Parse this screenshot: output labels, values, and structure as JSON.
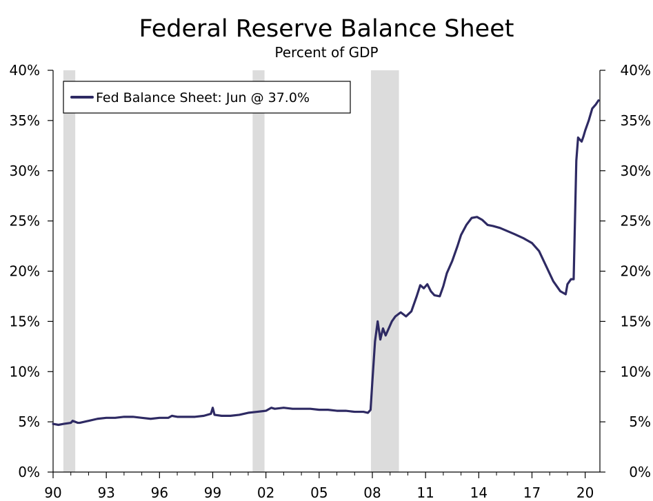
{
  "chart_data": {
    "type": "line",
    "title": "Federal Reserve Balance Sheet",
    "subtitle": "Percent of GDP",
    "xlabel": "",
    "ylabel": "",
    "xlim": [
      1990.0,
      2020.83
    ],
    "ylim": [
      0,
      40
    ],
    "y_ticks": [
      0,
      5,
      10,
      15,
      20,
      25,
      30,
      35,
      40
    ],
    "y_tick_labels": [
      "0%",
      "5%",
      "10%",
      "15%",
      "20%",
      "25%",
      "30%",
      "35%",
      "40%"
    ],
    "x_ticks": [
      1990,
      1993,
      1996,
      1999,
      2002,
      2005,
      2008,
      2011,
      2014,
      2017,
      2020
    ],
    "x_tick_labels": [
      "90",
      "93",
      "96",
      "99",
      "02",
      "05",
      "08",
      "11",
      "14",
      "17",
      "20"
    ],
    "grid": false,
    "legend": {
      "position": "top-left",
      "entries": [
        "Fed Balance Sheet: Jun @ 37.0%"
      ]
    },
    "colors": {
      "line": "#2e2a63",
      "recession": "#dcdcdc",
      "axis": "#000000"
    },
    "recessions": [
      [
        1990.58,
        1991.25
      ],
      [
        2001.25,
        2001.92
      ],
      [
        2007.92,
        2009.5
      ]
    ],
    "series": [
      {
        "name": "Fed Balance Sheet: Jun @ 37.0%",
        "x": [
          1990.0,
          1990.3,
          1990.6,
          1991.0,
          1991.1,
          1991.4,
          1991.5,
          1992.0,
          1992.5,
          1993.0,
          1993.5,
          1994.0,
          1994.5,
          1995.0,
          1995.5,
          1996.0,
          1996.5,
          1996.7,
          1997.0,
          1997.5,
          1998.0,
          1998.5,
          1998.9,
          1999.0,
          1999.1,
          1999.5,
          2000.0,
          2000.5,
          2001.0,
          2001.5,
          2002.0,
          2002.3,
          2002.5,
          2003.0,
          2003.5,
          2004.0,
          2004.5,
          2005.0,
          2005.5,
          2006.0,
          2006.5,
          2007.0,
          2007.5,
          2007.75,
          2007.9,
          2008.0,
          2008.15,
          2008.3,
          2008.45,
          2008.6,
          2008.75,
          2008.9,
          2009.1,
          2009.3,
          2009.6,
          2009.9,
          2010.2,
          2010.5,
          2010.7,
          2010.9,
          2011.1,
          2011.3,
          2011.5,
          2011.8,
          2012.0,
          2012.2,
          2012.5,
          2012.8,
          2013.0,
          2013.3,
          2013.6,
          2013.9,
          2014.2,
          2014.5,
          2014.8,
          2015.2,
          2015.6,
          2016.0,
          2016.5,
          2017.0,
          2017.4,
          2017.8,
          2018.2,
          2018.6,
          2018.9,
          2019.0,
          2019.2,
          2019.35,
          2019.5,
          2019.6,
          2019.8,
          2019.9,
          2020.0,
          2020.2,
          2020.4,
          2020.6,
          2020.75
        ],
        "values": [
          4.8,
          4.7,
          4.8,
          4.9,
          5.1,
          4.9,
          4.9,
          5.1,
          5.3,
          5.4,
          5.4,
          5.5,
          5.5,
          5.4,
          5.3,
          5.4,
          5.4,
          5.6,
          5.5,
          5.5,
          5.5,
          5.6,
          5.8,
          6.4,
          5.7,
          5.6,
          5.6,
          5.7,
          5.9,
          6.0,
          6.1,
          6.4,
          6.3,
          6.4,
          6.3,
          6.3,
          6.3,
          6.2,
          6.2,
          6.1,
          6.1,
          6.0,
          6.0,
          5.9,
          6.2,
          9.0,
          13.0,
          15.0,
          13.2,
          14.3,
          13.6,
          14.2,
          15.0,
          15.5,
          15.9,
          15.5,
          16.0,
          17.5,
          18.6,
          18.3,
          18.7,
          18.0,
          17.6,
          17.5,
          18.5,
          19.8,
          21.0,
          22.5,
          23.6,
          24.6,
          25.3,
          25.4,
          25.1,
          24.6,
          24.5,
          24.3,
          24.0,
          23.7,
          23.3,
          22.8,
          22.0,
          20.5,
          19.0,
          18.0,
          17.7,
          18.7,
          19.2,
          19.2,
          31.0,
          33.3,
          32.9,
          33.4,
          34.0,
          35.0,
          36.2,
          36.6,
          37.0
        ]
      }
    ]
  }
}
